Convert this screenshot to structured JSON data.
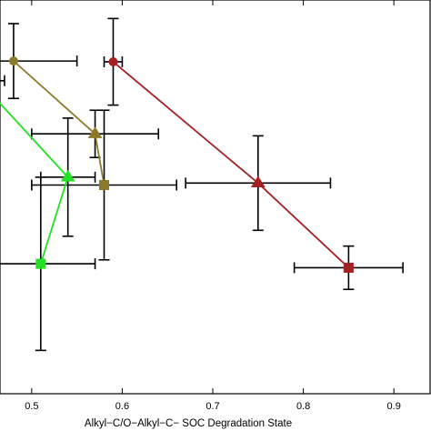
{
  "chart_data": {
    "type": "scatter",
    "title": "",
    "xlabel": "Alkyl−C/O−Alkyl−C− SOC Degradation State",
    "ylabel": "",
    "xlim": [
      0.465,
      0.94
    ],
    "ylim": [
      0,
      1
    ],
    "xticks": [
      0.5,
      0.6,
      0.7,
      0.8,
      0.9
    ],
    "xtick_labels": [
      "0.5",
      "0.6",
      "0.7",
      "0.8",
      "0.9"
    ],
    "grid": false,
    "legend": "none",
    "series": [
      {
        "color": "#a52121",
        "connected": true,
        "points": [
          {
            "x": 0.59,
            "y": 0.843,
            "xerr": 0.01,
            "yerr": 0.11,
            "marker": "circle"
          },
          {
            "x": 0.75,
            "y": 0.535,
            "xerr": 0.08,
            "yerr": 0.12,
            "marker": "triangle"
          },
          {
            "x": 0.85,
            "y": 0.32,
            "xerr": 0.06,
            "yerr": 0.055,
            "marker": "square"
          }
        ]
      },
      {
        "color": "#8c7a2a",
        "connected": true,
        "points": [
          {
            "x": 0.48,
            "y": 0.845,
            "xerr": 0.07,
            "yerr": 0.095,
            "marker": "circle"
          },
          {
            "x": 0.57,
            "y": 0.66,
            "xerr": 0.07,
            "yerr": 0.06,
            "marker": "triangle"
          },
          {
            "x": 0.58,
            "y": 0.53,
            "xerr": 0.08,
            "yerr": 0.19,
            "marker": "square"
          }
        ]
      },
      {
        "color": "#22e022",
        "connected": true,
        "points": [
          {
            "x": 0.44,
            "y": 0.8,
            "xerr": 0.0,
            "yerr": 0.0,
            "marker": "circle"
          },
          {
            "x": 0.54,
            "y": 0.55,
            "xerr": 0.03,
            "yerr": 0.15,
            "marker": "triangle"
          },
          {
            "x": 0.51,
            "y": 0.33,
            "xerr": 0.06,
            "yerr": 0.22,
            "marker": "square"
          }
        ]
      },
      {
        "color": "#000000",
        "connected": false,
        "points": [
          {
            "x": 0.44,
            "y": 0.795,
            "xerr": 0.03,
            "yerr": 0.0,
            "marker": "none"
          }
        ]
      }
    ]
  }
}
